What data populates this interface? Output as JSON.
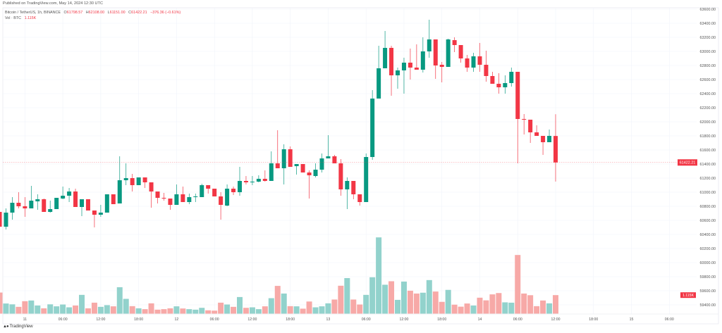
{
  "header": {
    "published": "Published on TradingView.com, May 14, 2024 12:30 UTC"
  },
  "legend": {
    "symbol": "Bitcoin / TetherUS, 1h, BINANCE",
    "o_label": "O",
    "o_value": "61798.57",
    "h_label": "H",
    "h_value": "62108.00",
    "l_label": "L",
    "l_value": "61151.00",
    "c_label": "C",
    "c_value": "61422.21",
    "change": "−376.36 (−0.61%)",
    "vol_label": "Vol · BTC",
    "vol_value": "1.115K"
  },
  "footer": {
    "brand": "TradingView",
    "logo_text": "TV"
  },
  "colors": {
    "up": "#089981",
    "down": "#F23645",
    "vol_up": "#92D2CC",
    "vol_down": "#F7A9A7",
    "grid": "#F0F3FA"
  },
  "chart_data": {
    "type": "candlestick",
    "title": "Bitcoin / TetherUS, 1h, BINANCE",
    "interval": "1h",
    "ylim": [
      59300,
      63650
    ],
    "price_ticks": [
      "63600.00",
      "63400.00",
      "63200.00",
      "63000.00",
      "62800.00",
      "62600.00",
      "62400.00",
      "62200.00",
      "62000.00",
      "61800.00",
      "61600.00",
      "61400.00",
      "61200.00",
      "61000.00",
      "60800.00",
      "60600.00",
      "60400.00",
      "60200.00",
      "60000.00",
      "59800.00",
      "59600.00",
      "59400.00"
    ],
    "last_price_label": "61422.21",
    "last_price": 61422.21,
    "last_volume_label": "1.115K",
    "x_ticks": [
      "11",
      "06:00",
      "12:00",
      "18:00",
      "12",
      "06:00",
      "12:00",
      "18:00",
      "13",
      "06:00",
      "12:00",
      "18:00",
      "14",
      "06:00",
      "12:00",
      "18:00",
      "15",
      "06:00"
    ],
    "first_tick_bar_index": 4,
    "tick_every_bars": 6,
    "ohlc": [
      [
        60720,
        60750,
        60510,
        60510
      ],
      [
        60510,
        60770,
        60470,
        60710
      ],
      [
        60710,
        60930,
        60610,
        60850
      ],
      [
        60850,
        61000,
        60770,
        60800
      ],
      [
        60800,
        60930,
        60650,
        60770
      ],
      [
        60770,
        61090,
        60770,
        60880
      ],
      [
        60870,
        60970,
        60750,
        60900
      ],
      [
        60900,
        60910,
        60720,
        60720
      ],
      [
        60720,
        60880,
        60710,
        60760
      ],
      [
        60760,
        60920,
        60760,
        60920
      ],
      [
        60910,
        61080,
        60900,
        60950
      ],
      [
        60950,
        61060,
        60860,
        61010
      ],
      [
        61010,
        61050,
        60790,
        60790
      ],
      [
        60790,
        60900,
        60660,
        60900
      ],
      [
        60900,
        60900,
        60740,
        60740
      ],
      [
        60740,
        60740,
        60500,
        60680
      ],
      [
        60680,
        60820,
        60650,
        60710
      ],
      [
        60710,
        60970,
        60710,
        60970
      ],
      [
        60970,
        60970,
        60830,
        60830
      ],
      [
        60840,
        61510,
        60840,
        61170
      ],
      [
        61170,
        61410,
        61100,
        61200
      ],
      [
        61200,
        61260,
        61010,
        61100
      ],
      [
        61100,
        61210,
        61100,
        61210
      ],
      [
        61210,
        61210,
        61060,
        61140
      ],
      [
        61140,
        61140,
        60780,
        61010
      ],
      [
        61010,
        61010,
        60840,
        60920
      ],
      [
        60920,
        60990,
        60880,
        60910
      ],
      [
        60910,
        60910,
        60750,
        60820
      ],
      [
        60820,
        61110,
        60820,
        60970
      ],
      [
        60970,
        61080,
        60860,
        60860
      ],
      [
        60860,
        60980,
        60830,
        60930
      ],
      [
        60930,
        60980,
        60860,
        60940
      ],
      [
        60930,
        61120,
        60930,
        61100
      ],
      [
        61100,
        61100,
        60980,
        61050
      ],
      [
        61050,
        61050,
        60940,
        60940
      ],
      [
        60940,
        61000,
        60610,
        60820
      ],
      [
        60810,
        61110,
        60800,
        61050
      ],
      [
        61050,
        61080,
        60960,
        61000
      ],
      [
        61000,
        61360,
        60950,
        61160
      ],
      [
        61160,
        61230,
        61110,
        61140
      ],
      [
        61140,
        61230,
        61100,
        61150
      ],
      [
        61150,
        61240,
        61140,
        61190
      ],
      [
        61190,
        61310,
        61150,
        61160
      ],
      [
        61160,
        61580,
        61160,
        61410
      ],
      [
        61410,
        61880,
        61340,
        61340
      ],
      [
        61340,
        61680,
        61110,
        61610
      ],
      [
        61610,
        61650,
        61360,
        61360
      ],
      [
        61370,
        61400,
        61250,
        61400
      ],
      [
        61400,
        61400,
        61280,
        61280
      ],
      [
        61280,
        61310,
        60910,
        61240
      ],
      [
        61230,
        61410,
        61210,
        61320
      ],
      [
        61320,
        61550,
        61280,
        61480
      ],
      [
        61480,
        61810,
        61480,
        61510
      ],
      [
        61510,
        61530,
        61410,
        61410
      ],
      [
        61410,
        61470,
        60950,
        61040
      ],
      [
        61040,
        61210,
        60760,
        61160
      ],
      [
        61160,
        61160,
        60900,
        60970
      ],
      [
        60970,
        60970,
        60810,
        60860
      ],
      [
        60860,
        61550,
        60860,
        61500
      ],
      [
        61500,
        62450,
        61460,
        62330
      ],
      [
        62330,
        63080,
        62330,
        62760
      ],
      [
        62760,
        63290,
        62760,
        63050
      ],
      [
        63050,
        63080,
        62370,
        62660
      ],
      [
        62660,
        62770,
        62470,
        62730
      ],
      [
        62730,
        62910,
        62400,
        62840
      ],
      [
        62840,
        63040,
        62600,
        62770
      ],
      [
        62770,
        63100,
        62740,
        62740
      ],
      [
        62740,
        63200,
        62700,
        63000
      ],
      [
        63000,
        63450,
        62910,
        63170
      ],
      [
        63170,
        63170,
        62610,
        62800
      ],
      [
        62810,
        62850,
        62560,
        62780
      ],
      [
        62780,
        63180,
        62780,
        63170
      ],
      [
        63160,
        63200,
        62990,
        63090
      ],
      [
        63090,
        63090,
        62840,
        62900
      ],
      [
        62900,
        62950,
        62710,
        62770
      ],
      [
        62770,
        62980,
        62710,
        62930
      ],
      [
        62930,
        63120,
        62710,
        62810
      ],
      [
        62810,
        63010,
        62570,
        62650
      ],
      [
        62650,
        62710,
        62540,
        62540
      ],
      [
        62540,
        62690,
        62400,
        62490
      ],
      [
        62490,
        62660,
        62400,
        62550
      ],
      [
        62550,
        62770,
        62500,
        62710
      ],
      [
        62710,
        62710,
        61410,
        62040
      ],
      [
        62040,
        62110,
        61820,
        62030
      ],
      [
        62030,
        62030,
        61700,
        61850
      ],
      [
        61850,
        61950,
        61800,
        61800
      ],
      [
        61800,
        61800,
        61530,
        61710
      ],
      [
        61710,
        61890,
        61710,
        61800
      ],
      [
        61798.57,
        62108,
        61151,
        61422.21
      ]
    ],
    "volume_k": [
      1.27,
      0.61,
      0.56,
      0.41,
      0.75,
      0.79,
      0.49,
      0.32,
      0.56,
      0.44,
      0.55,
      0.38,
      0.49,
      1.13,
      0.32,
      0.66,
      0.41,
      0.51,
      0.44,
      1.59,
      0.89,
      0.45,
      0.32,
      0.27,
      0.62,
      0.24,
      0.27,
      0.32,
      0.44,
      0.31,
      0.27,
      0.24,
      0.35,
      0.2,
      0.18,
      0.66,
      0.55,
      0.41,
      1.0,
      0.35,
      0.38,
      0.27,
      0.44,
      0.93,
      1.67,
      1.21,
      0.45,
      0.44,
      0.3,
      0.73,
      0.38,
      0.44,
      0.62,
      0.85,
      1.68,
      2.14,
      0.85,
      0.55,
      1.13,
      2.19,
      4.59,
      1.74,
      1.95,
      0.83,
      1.93,
      1.38,
      1.21,
      1.26,
      2.02,
      1.33,
      0.71,
      1.43,
      0.54,
      0.42,
      0.61,
      0.49,
      0.96,
      0.8,
      1.16,
      1.24,
      0.68,
      0.66,
      3.53,
      1.21,
      1.11,
      0.45,
      0.79,
      0.62,
      1.115
    ]
  }
}
